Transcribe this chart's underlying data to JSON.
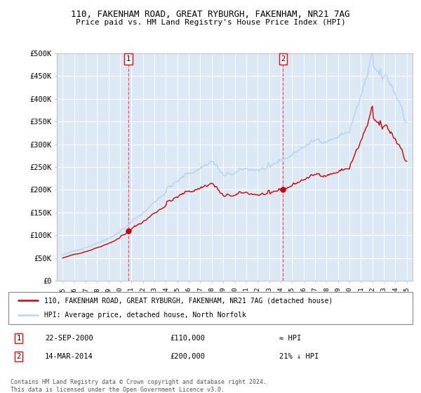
{
  "title1": "110, FAKENHAM ROAD, GREAT RYBURGH, FAKENHAM, NR21 7AG",
  "title2": "Price paid vs. HM Land Registry's House Price Index (HPI)",
  "ylim": [
    0,
    500000
  ],
  "yticks": [
    0,
    50000,
    100000,
    150000,
    200000,
    250000,
    300000,
    350000,
    400000,
    450000,
    500000
  ],
  "ytick_labels": [
    "£0",
    "£50K",
    "£100K",
    "£150K",
    "£200K",
    "£250K",
    "£300K",
    "£350K",
    "£400K",
    "£450K",
    "£500K"
  ],
  "xlim_start": 1994.5,
  "xlim_end": 2025.5,
  "sale1_date": 2000.73,
  "sale1_price": 110000,
  "sale2_date": 2014.21,
  "sale2_price": 200000,
  "legend_line1": "110, FAKENHAM ROAD, GREAT RYBURGH, FAKENHAM, NR21 7AG (detached house)",
  "legend_line2": "HPI: Average price, detached house, North Norfolk",
  "ann1_date": "22-SEP-2000",
  "ann1_price": "£110,000",
  "ann1_vs": "≈ HPI",
  "ann2_date": "14-MAR-2014",
  "ann2_price": "£200,000",
  "ann2_vs": "21% ↓ HPI",
  "footer": "Contains HM Land Registry data © Crown copyright and database right 2024.\nThis data is licensed under the Open Government Licence v3.0.",
  "hpi_color": "#b8d4ee",
  "price_color": "#cc0000",
  "sale_marker_color": "#cc0000",
  "bg_color": "#dce9f5",
  "dashed_color": "#dd4444"
}
